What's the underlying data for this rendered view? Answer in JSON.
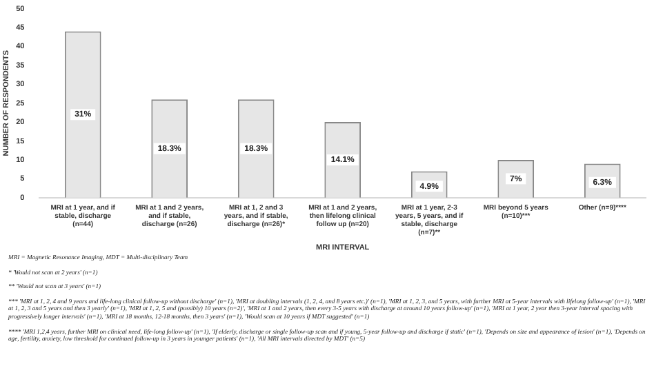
{
  "chart_data": {
    "type": "bar",
    "xlabel": "MRI INTERVAL",
    "ylabel": "NUMBER OF RESPONDENTS",
    "categories": [
      "MRI at 1 year, and if stable, discharge (n=44)",
      "MRI at 1 and 2 years, and if stable, discharge (n=26)",
      "MRI at 1, 2 and 3 years, and if stable, discharge (n=26)*",
      "MRI at 1 and 2 years, then lifelong clinical follow up (n=20)",
      "MRI at 1 year, 2-3 years, 5 years, and if stable, discharge (n=7)**",
      "MRI beyond 5 years (n=10)***",
      "Other (n=9)****"
    ],
    "values": [
      44,
      26,
      26,
      20,
      7,
      10,
      9
    ],
    "color": "#e6e6e6",
    "ylim": [
      0,
      50
    ],
    "yticks": [
      0,
      5,
      10,
      15,
      20,
      25,
      30,
      35,
      40,
      45,
      50
    ],
    "grid": false,
    "legend": false,
    "annotations": [
      {
        "text": "31%",
        "x": "MRI at 1 year, and if stable, discharge (n=44)",
        "y": 22
      },
      {
        "text": "18.3%",
        "x": "MRI at 1 and 2 years, and if stable, discharge (n=26)",
        "y": 13
      },
      {
        "text": "18.3%",
        "x": "MRI at 1, 2 and 3 years, and if stable, discharge (n=26)*",
        "y": 13
      },
      {
        "text": "14.1%",
        "x": "MRI at 1 and 2 years, then lifelong clinical follow up (n=20)",
        "y": 10
      },
      {
        "text": "4.9%",
        "x": "MRI at 1 year, 2-3 years, 5 years, and if stable, discharge (n=7)**",
        "y": 3
      },
      {
        "text": "7%",
        "x": "MRI beyond 5 years (n=10)***",
        "y": 5
      },
      {
        "text": "6.3%",
        "x": "Other (n=9)****",
        "y": 4
      },
      "MRI = Magnetic Resonance Imaging, MDT = Multi-disciplinary Team",
      "* 'Would not scan at 2 years' (n=1)",
      "** 'Would not scan at 3 years' (n=1)",
      "*** 'MRI at 1, 2, 4 and 9 years and life-long clinical follow-up without discharge' (n=1), 'MRI at doubling intervals (1, 2, 4, and 8 years etc.)' (n=1), 'MRI at 1, 2, 3, and 5 years, with further MRI at 5-year intervals with lifelong follow-up' (n=1), 'MRI at 1, 2, 3 and 5 years and then 3 yearly' (n=1), 'MRI at 1, 2, 5 and (possibly) 10 years (n=2)', 'MRI at 1 and 2 years, then every 3-5 years with discharge at around 10 years follow-up' (n=1), 'MRI at 1 year, 2 year then 3-year interval spacing with progressively longer intervals' (n=1), 'MRI at 18 months, 12-18 months, then 3 years' (n=1), 'Would scan at 10 years if MDT suggested' (n=1)",
      "**** 'MRI 1,2,4 years, further MRI on clinical need, life-long follow-up' (n=1), 'If elderly, discharge or single follow-up scan and if young, 5-year follow-up and discharge if static' (n=1), 'Depends on size and appearance of lesion' (n=1), 'Depends on age, fertility, anxiety, low threshold for continued follow-up in 3 years in younger patients' (n=1), 'All MRI intervals directed by MDT' (n=5)"
    ]
  }
}
